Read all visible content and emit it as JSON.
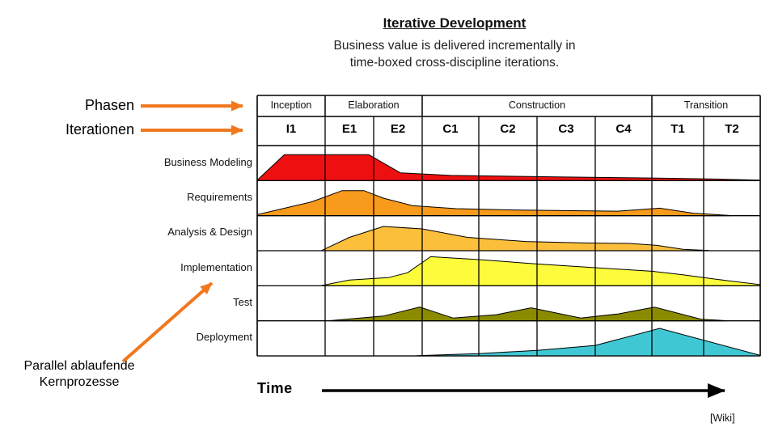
{
  "title": "Iterative Development",
  "subtitle_line1": "Business value is delivered incrementally in",
  "subtitle_line2": "time-boxed cross-discipline iterations.",
  "annotations": {
    "phasen": "Phasen",
    "iterationen": "Iterationen",
    "parallel_line1": "Parallel ablaufende",
    "parallel_line2": "Kernprozesse",
    "time_label": "Time",
    "credit": "[Wiki]"
  },
  "colors": {
    "arrow_orange": "#F0781E",
    "grid": "#000000"
  },
  "chart": {
    "phases": [
      {
        "label": "Inception",
        "cols": 1
      },
      {
        "label": "Elaboration",
        "cols": 2
      },
      {
        "label": "Construction",
        "cols": 4
      },
      {
        "label": "Transition",
        "cols": 2
      }
    ],
    "iterations": [
      "I1",
      "E1",
      "E2",
      "C1",
      "C2",
      "C3",
      "C4",
      "T1",
      "T2"
    ],
    "disciplines": [
      {
        "label": "Business Modeling",
        "color": "#EE1010",
        "peak": 32,
        "points": [
          [
            0,
            0.02
          ],
          [
            0.4,
            1
          ],
          [
            1.9,
            1
          ],
          [
            2.55,
            0.3
          ],
          [
            3.5,
            0.2
          ],
          [
            5.5,
            0.14
          ],
          [
            7,
            0.1
          ],
          [
            8.2,
            0.06
          ],
          [
            9,
            0.02
          ]
        ]
      },
      {
        "label": "Requirements",
        "color": "#F89A1C",
        "peak": 31,
        "points": [
          [
            0,
            0.04
          ],
          [
            0.8,
            0.55
          ],
          [
            1.35,
            1
          ],
          [
            1.8,
            1
          ],
          [
            2.2,
            0.7
          ],
          [
            2.8,
            0.4
          ],
          [
            3.6,
            0.28
          ],
          [
            4.6,
            0.23
          ],
          [
            5.6,
            0.2
          ],
          [
            6.4,
            0.18
          ],
          [
            7.15,
            0.3
          ],
          [
            7.8,
            0.1
          ],
          [
            8.45,
            0.01
          ]
        ]
      },
      {
        "label": "Analysis & Design",
        "color": "#FBBF3B",
        "peak": 30,
        "points": [
          [
            0.95,
            0.01
          ],
          [
            1.5,
            0.55
          ],
          [
            2.2,
            1
          ],
          [
            3.0,
            0.9
          ],
          [
            3.8,
            0.55
          ],
          [
            4.8,
            0.38
          ],
          [
            5.8,
            0.32
          ],
          [
            6.6,
            0.3
          ],
          [
            7.1,
            0.22
          ],
          [
            7.6,
            0.06
          ],
          [
            8.1,
            0.01
          ]
        ]
      },
      {
        "label": "Implementation",
        "color": "#FCFC3C",
        "peak": 36,
        "points": [
          [
            0.95,
            0.01
          ],
          [
            1.5,
            0.2
          ],
          [
            2.3,
            0.28
          ],
          [
            2.7,
            0.45
          ],
          [
            3.15,
            1
          ],
          [
            4,
            0.9
          ],
          [
            5,
            0.75
          ],
          [
            6,
            0.62
          ],
          [
            7,
            0.5
          ],
          [
            7.6,
            0.38
          ],
          [
            8.4,
            0.18
          ],
          [
            9,
            0.04
          ]
        ]
      },
      {
        "label": "Test",
        "color": "#8B8B00",
        "peak": 17,
        "points": [
          [
            1.1,
            0.01
          ],
          [
            2.2,
            0.35
          ],
          [
            2.95,
            1
          ],
          [
            3.55,
            0.2
          ],
          [
            4.3,
            0.45
          ],
          [
            4.9,
            0.95
          ],
          [
            5.75,
            0.2
          ],
          [
            6.4,
            0.5
          ],
          [
            7.05,
            1
          ],
          [
            7.95,
            0.12
          ],
          [
            8.4,
            0.01
          ]
        ]
      },
      {
        "label": "Deployment",
        "color": "#3FC8D4",
        "peak": 34,
        "points": [
          [
            2.9,
            0.01
          ],
          [
            4,
            0.08
          ],
          [
            5,
            0.2
          ],
          [
            6,
            0.38
          ],
          [
            7.15,
            1
          ],
          [
            9,
            0.02
          ]
        ]
      }
    ]
  }
}
